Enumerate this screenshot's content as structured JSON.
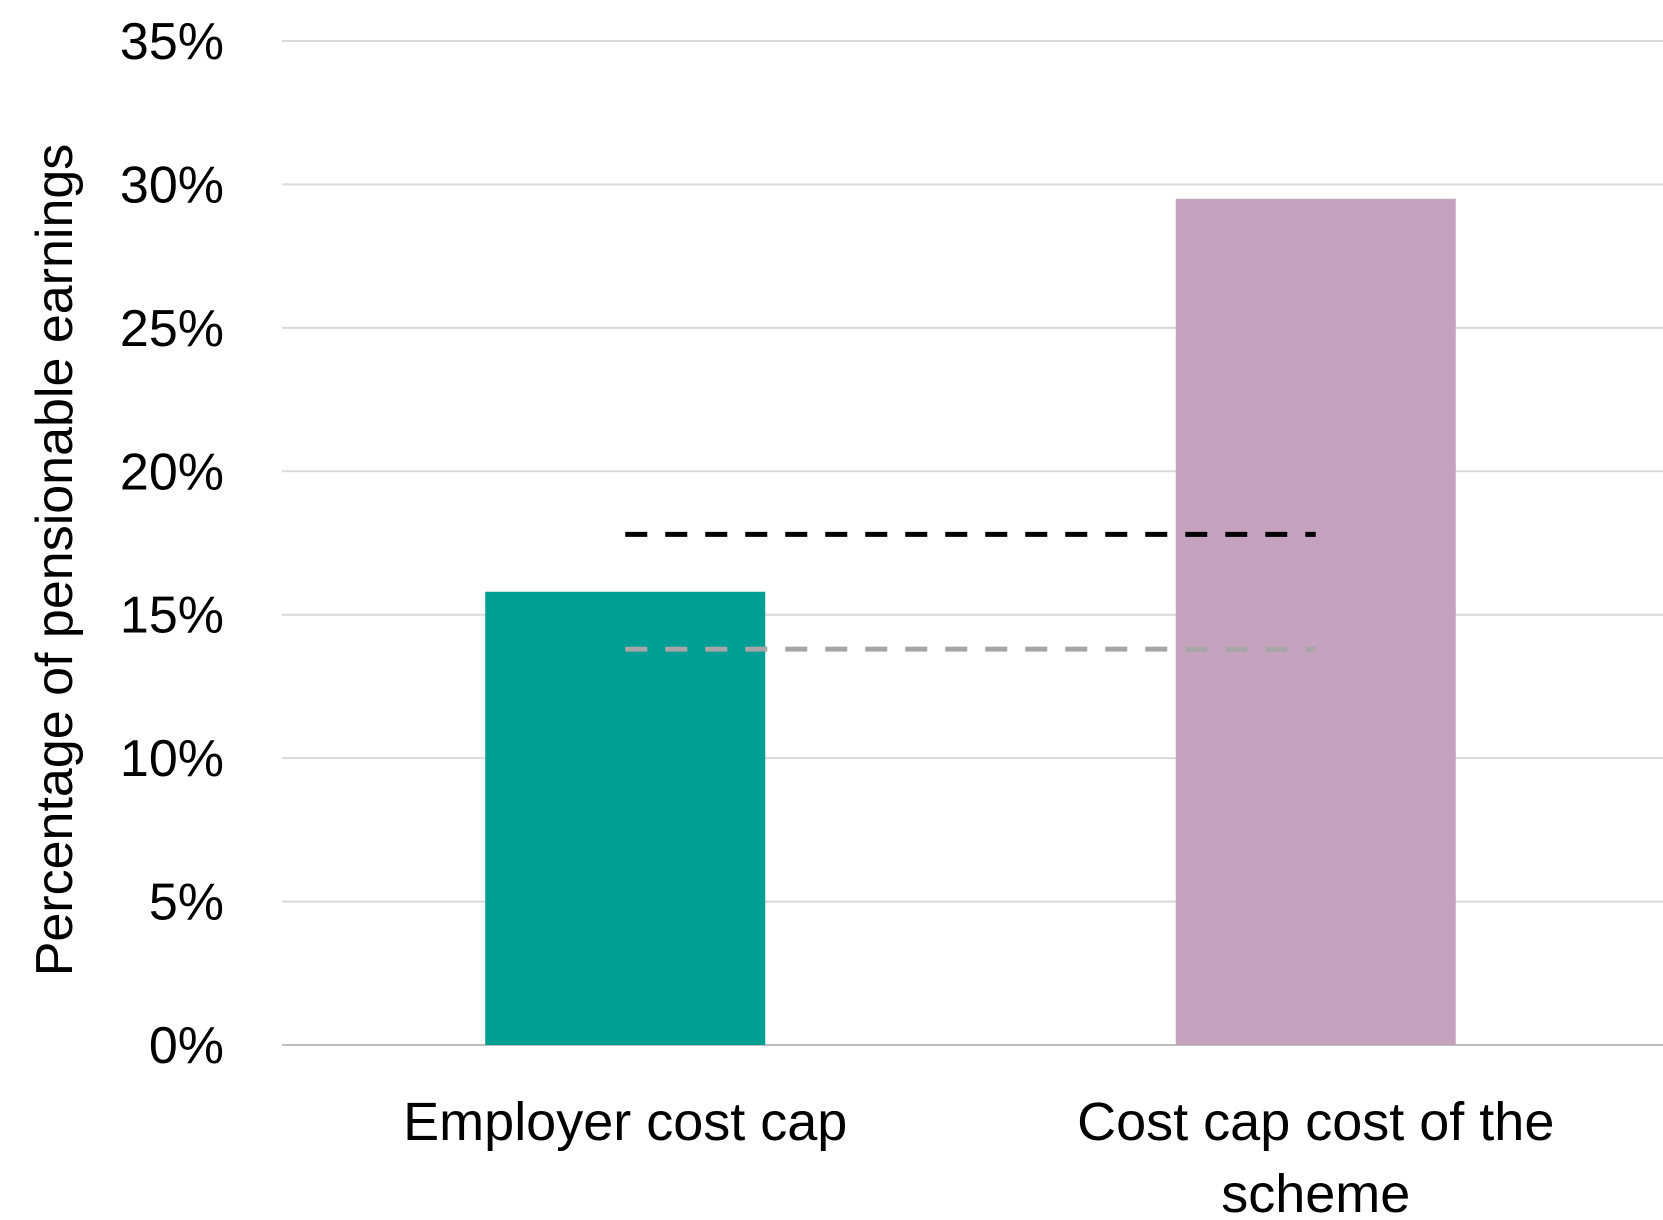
{
  "chart_data": {
    "type": "bar",
    "title": "",
    "xlabel": "",
    "ylabel": "Percentage of pensionable earnings",
    "categories": [
      "Employer cost cap",
      "Cost cap cost of the scheme"
    ],
    "category_lines": [
      [
        "Employer cost cap"
      ],
      [
        "Cost cap cost of the",
        "scheme"
      ]
    ],
    "values": [
      15.8,
      29.5
    ],
    "ylim": [
      0,
      35
    ],
    "yticks": [
      0,
      5,
      10,
      15,
      20,
      25,
      30,
      35
    ],
    "ytick_labels": [
      "0%",
      "5%",
      "10%",
      "15%",
      "20%",
      "25%",
      "30%",
      "35%"
    ],
    "reference_lines": [
      {
        "value": 17.8,
        "style": "dashed",
        "color": "#000000"
      },
      {
        "value": 13.8,
        "style": "dashed",
        "color": "#a6a6a6"
      }
    ],
    "bar_colors": [
      "#009e94",
      "#c5a3bf"
    ],
    "grid": true,
    "legend": "none"
  }
}
